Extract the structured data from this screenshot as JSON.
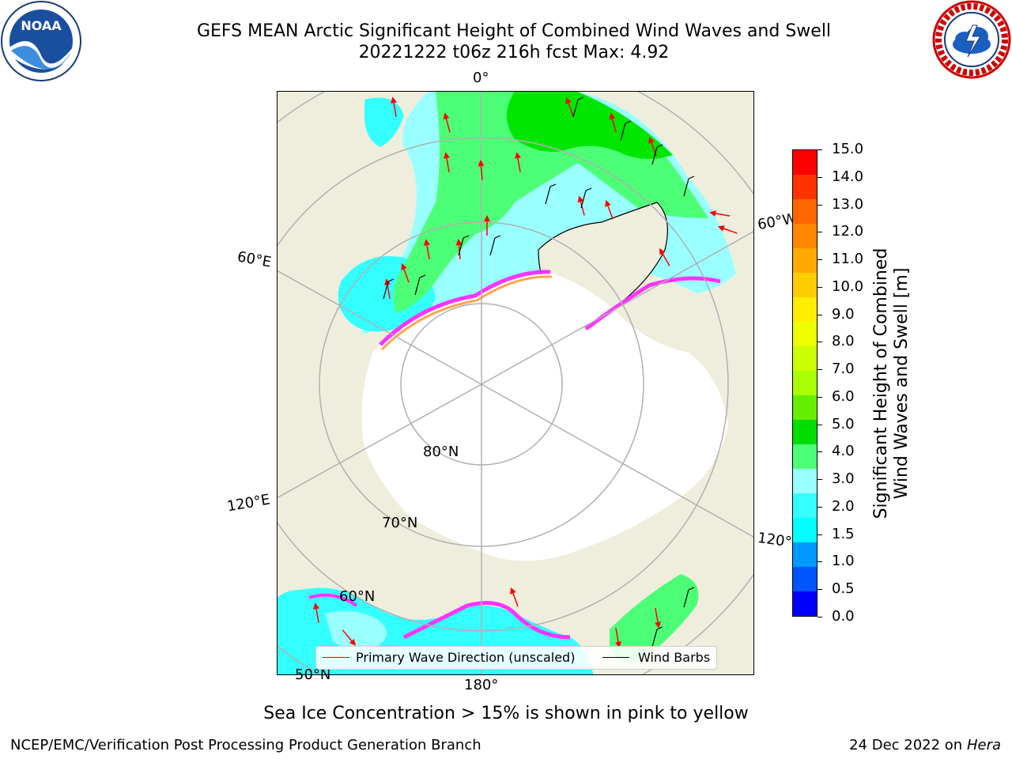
{
  "header": {
    "title": "GEFS MEAN Arctic Significant Height of Combined Wind Waves and Swell",
    "subtitle": "20221222 t06z 216h fcst   Max: 4.92"
  },
  "logos": {
    "left": "noaa-logo",
    "right": "nws-logo"
  },
  "map": {
    "projection": "north-polar-stereographic",
    "longitude_labels": [
      "0°",
      "60°E",
      "120°E",
      "180°",
      "120°W",
      "60°W"
    ],
    "latitude_labels": [
      "80°N",
      "70°N",
      "60°N",
      "50°N"
    ],
    "colors": {
      "land": "#efeedd",
      "ocean_low": "#99ffff",
      "ocean_mid": "#33ffff",
      "ocean_high": "#4dff77",
      "ocean_top": "#00e600",
      "ice_pink": "#ff33ff",
      "ice_orange": "#ffa64d",
      "grid": "#b0b0b0",
      "arrow": "#ff0000"
    }
  },
  "legend": {
    "wave_direction": "Primary Wave Direction (unscaled)",
    "wind_barbs": "Wind Barbs"
  },
  "colorbar": {
    "label_line1": "Significant Height of Combined",
    "label_line2": "Wind Waves and Swell [m]",
    "ticks": [
      "15.0",
      "14.0",
      "13.0",
      "12.0",
      "11.0",
      "10.0",
      "9.0",
      "8.0",
      "7.0",
      "6.0",
      "5.0",
      "4.0",
      "3.0",
      "2.0",
      "1.5",
      "1.0",
      "0.5",
      "0.0"
    ],
    "colors": [
      "#ff0000",
      "#ff3300",
      "#ff6600",
      "#ff8800",
      "#ffaa00",
      "#ffcc00",
      "#ffee00",
      "#eeff00",
      "#ccff00",
      "#aaff00",
      "#66ee00",
      "#00dd00",
      "#4dff77",
      "#99ffff",
      "#33ffff",
      "#00ffff",
      "#0099ff",
      "#0055ff",
      "#0000ff"
    ]
  },
  "note": "Sea Ice Concentration > 15% is shown in pink to yellow",
  "footer": {
    "left": "NCEP/EMC/Verification Post Processing Product Generation Branch",
    "date": "24 Dec 2022 on",
    "machine": "Hera"
  }
}
